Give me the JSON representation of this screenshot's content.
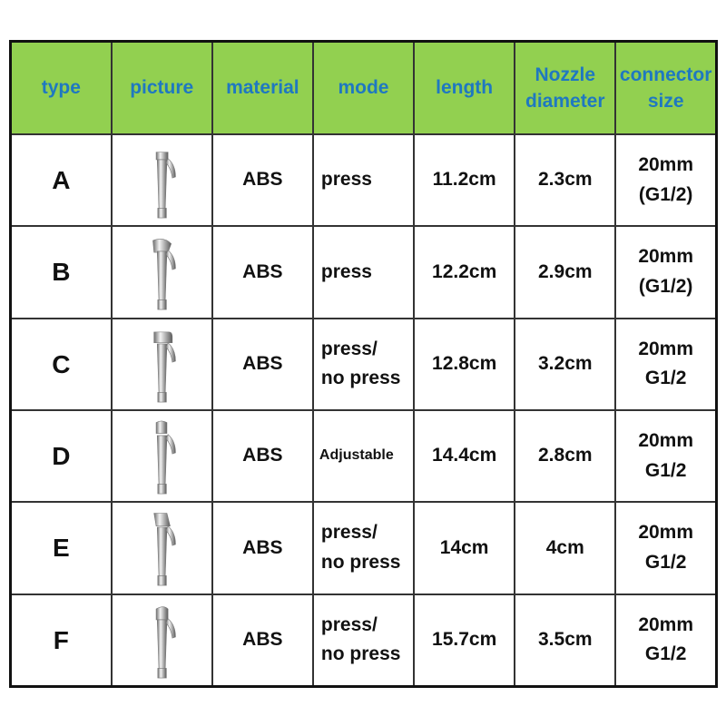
{
  "header_bg": "#92d050",
  "header_text_color": "#1f78c1",
  "columns": [
    "type",
    "picture",
    "material",
    "mode",
    "length",
    "Nozzle diameter",
    "connector size"
  ],
  "columns_lines": [
    [
      "type"
    ],
    [
      "picture"
    ],
    [
      "material"
    ],
    [
      "mode"
    ],
    [
      "length"
    ],
    [
      "Nozzle",
      "diameter"
    ],
    [
      "connector",
      "size"
    ]
  ],
  "rows": [
    {
      "type": "A",
      "picture": "sprayer-image-a",
      "material": "ABS",
      "mode": [
        "press"
      ],
      "length": "11.2cm",
      "nozzle": "2.3cm",
      "connector": [
        "20mm",
        "(G1/2)"
      ]
    },
    {
      "type": "B",
      "picture": "sprayer-image-b",
      "material": "ABS",
      "mode": [
        "press"
      ],
      "length": "12.2cm",
      "nozzle": "2.9cm",
      "connector": [
        "20mm",
        "(G1/2)"
      ]
    },
    {
      "type": "C",
      "picture": "sprayer-image-c",
      "material": "ABS",
      "mode": [
        "press/",
        "no press"
      ],
      "length": "12.8cm",
      "nozzle": "3.2cm",
      "connector": [
        "20mm",
        "G1/2"
      ]
    },
    {
      "type": "D",
      "picture": "sprayer-image-d",
      "material": "ABS",
      "mode": [
        "Adjustable"
      ],
      "length": "14.4cm",
      "nozzle": "2.8cm",
      "connector": [
        "20mm",
        "G1/2"
      ]
    },
    {
      "type": "E",
      "picture": "sprayer-image-e",
      "material": "ABS",
      "mode": [
        "press/",
        "no press"
      ],
      "length": "14cm",
      "nozzle": "4cm",
      "connector": [
        "20mm",
        "G1/2"
      ]
    },
    {
      "type": "F",
      "picture": "sprayer-image-f",
      "material": "ABS",
      "mode": [
        "press/",
        "no press"
      ],
      "length": "15.7cm",
      "nozzle": "3.5cm",
      "connector": [
        "20mm",
        "G1/2"
      ]
    }
  ]
}
